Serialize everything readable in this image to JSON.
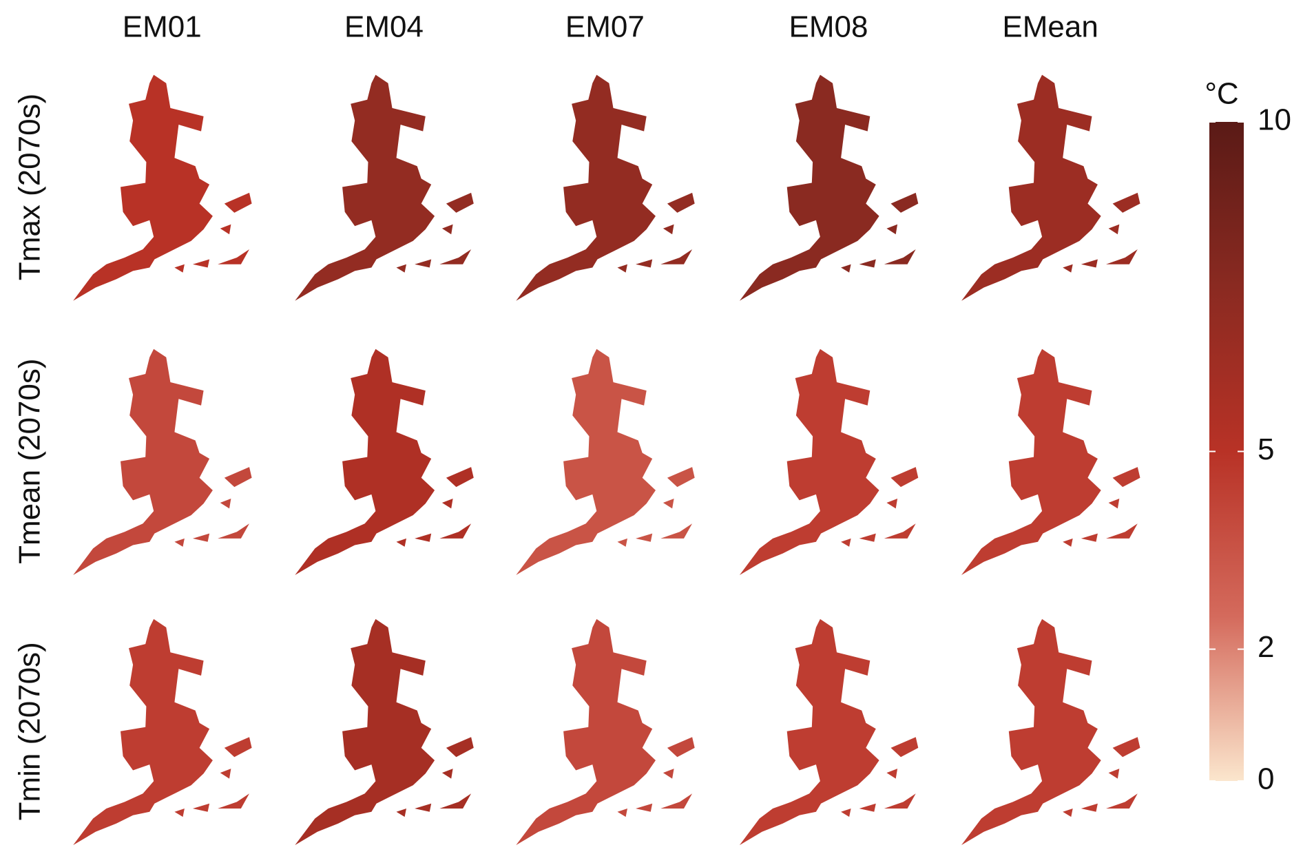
{
  "chart_data": {
    "type": "choropleth-grid",
    "columns": [
      "EM01",
      "EM04",
      "EM07",
      "EM08",
      "EMean"
    ],
    "rows": [
      "Tmax (2070s)",
      "Tmean (2070s)",
      "Tmin (2070s)"
    ],
    "values": [
      [
        5,
        7,
        7,
        7.5,
        6.5
      ],
      [
        4,
        5.5,
        3.5,
        4.5,
        4.5
      ],
      [
        4.5,
        6,
        4,
        4.5,
        4.5
      ]
    ],
    "colorbar": {
      "label": "°C",
      "lim": [
        0,
        10
      ],
      "ticks": [
        0,
        2,
        5,
        10
      ],
      "colors": [
        "#fbe6cd",
        "#d46a5c",
        "#b83226",
        "#8a2a21",
        "#5a1a16"
      ]
    }
  }
}
